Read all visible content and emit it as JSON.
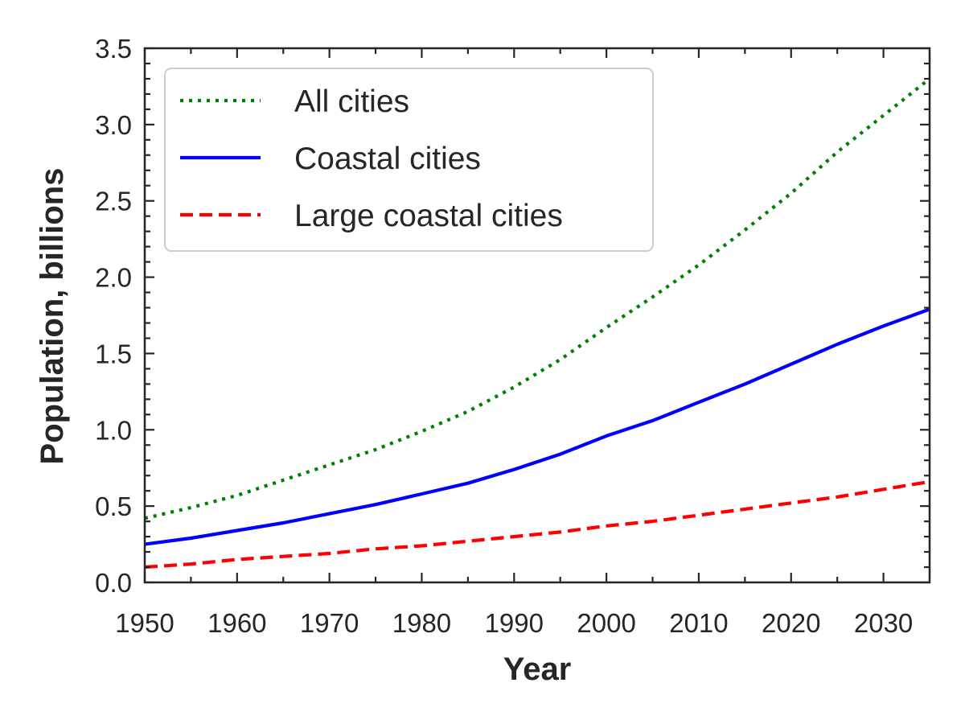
{
  "chart_data": {
    "type": "line",
    "title": "",
    "xlabel": "Year",
    "ylabel": "Population, billions",
    "xlim": [
      1950,
      2035
    ],
    "ylim": [
      0.0,
      3.5
    ],
    "xticks": [
      1950,
      1960,
      1970,
      1980,
      1990,
      2000,
      2010,
      2020,
      2030
    ],
    "yticks": [
      0.0,
      0.5,
      1.0,
      1.5,
      2.0,
      2.5,
      3.0,
      3.5
    ],
    "xtick_labels": [
      "1950",
      "1960",
      "1970",
      "1980",
      "1990",
      "2000",
      "2010",
      "2020",
      "2030"
    ],
    "ytick_labels": [
      "0.0",
      "0.5",
      "1.0",
      "1.5",
      "2.0",
      "2.5",
      "3.0",
      "3.5"
    ],
    "grid": false,
    "legend_position": "top-left",
    "x": [
      1950,
      1955,
      1960,
      1965,
      1970,
      1975,
      1980,
      1985,
      1990,
      1995,
      2000,
      2005,
      2010,
      2015,
      2020,
      2025,
      2030,
      2035
    ],
    "series": [
      {
        "name": "All cities",
        "color": "#008000",
        "style": "dotted",
        "values": [
          0.42,
          0.49,
          0.57,
          0.67,
          0.77,
          0.87,
          0.99,
          1.12,
          1.28,
          1.46,
          1.67,
          1.87,
          2.08,
          2.31,
          2.55,
          2.82,
          3.06,
          3.3
        ]
      },
      {
        "name": "Coastal cities",
        "color": "#0000ff",
        "style": "solid",
        "values": [
          0.25,
          0.29,
          0.34,
          0.39,
          0.45,
          0.51,
          0.58,
          0.65,
          0.74,
          0.84,
          0.96,
          1.06,
          1.18,
          1.3,
          1.43,
          1.56,
          1.68,
          1.79
        ]
      },
      {
        "name": "Large coastal cities",
        "color": "#ff0000",
        "style": "dashed",
        "values": [
          0.1,
          0.12,
          0.15,
          0.17,
          0.19,
          0.22,
          0.24,
          0.27,
          0.3,
          0.33,
          0.37,
          0.4,
          0.44,
          0.48,
          0.52,
          0.56,
          0.61,
          0.66
        ]
      }
    ]
  }
}
